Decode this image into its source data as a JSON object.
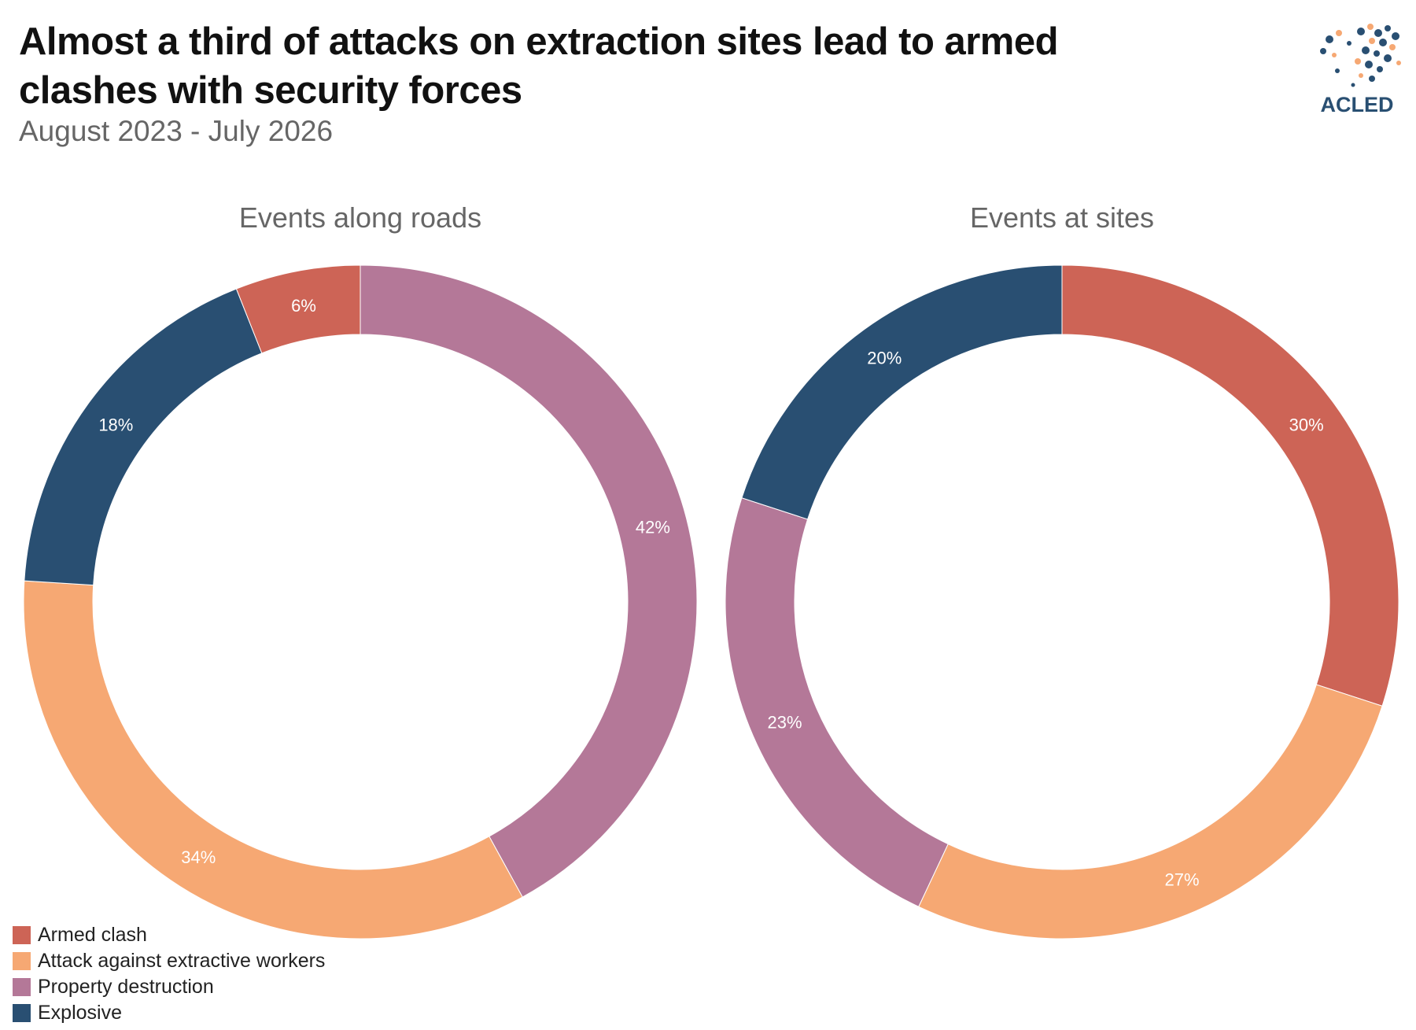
{
  "header": {
    "title": "Almost a third of attacks on extraction sites lead to armed clashes with security forces",
    "subtitle": "August 2023 - July 2026",
    "logo_text": "ACLED"
  },
  "colors": {
    "Armed clash": "#CD6456",
    "Attack against extractive workers": "#F6A873",
    "Property destruction": "#B47898",
    "Explosive": "#294F72"
  },
  "legend": [
    {
      "label": "Armed clash",
      "color": "#CD6456"
    },
    {
      "label": "Attack against extractive workers",
      "color": "#F6A873"
    },
    {
      "label": "Property destruction",
      "color": "#B47898"
    },
    {
      "label": "Explosive",
      "color": "#294F72"
    }
  ],
  "chart_data": [
    {
      "type": "pie",
      "donut": true,
      "title": "Events along roads",
      "direction": "clockwise from top",
      "slices": [
        {
          "label": "Property destruction",
          "value": 42,
          "value_label": "42%"
        },
        {
          "label": "Attack against extractive workers",
          "value": 34,
          "value_label": "34%"
        },
        {
          "label": "Explosive",
          "value": 18,
          "value_label": "18%"
        },
        {
          "label": "Armed clash",
          "value": 6,
          "value_label": "6%"
        }
      ]
    },
    {
      "type": "pie",
      "donut": true,
      "title": "Events at sites",
      "direction": "clockwise from top",
      "slices": [
        {
          "label": "Armed clash",
          "value": 30,
          "value_label": "30%"
        },
        {
          "label": "Attack against extractive workers",
          "value": 27,
          "value_label": "27%"
        },
        {
          "label": "Property destruction",
          "value": 23,
          "value_label": "23%"
        },
        {
          "label": "Explosive",
          "value": 20,
          "value_label": "20%"
        }
      ]
    }
  ]
}
